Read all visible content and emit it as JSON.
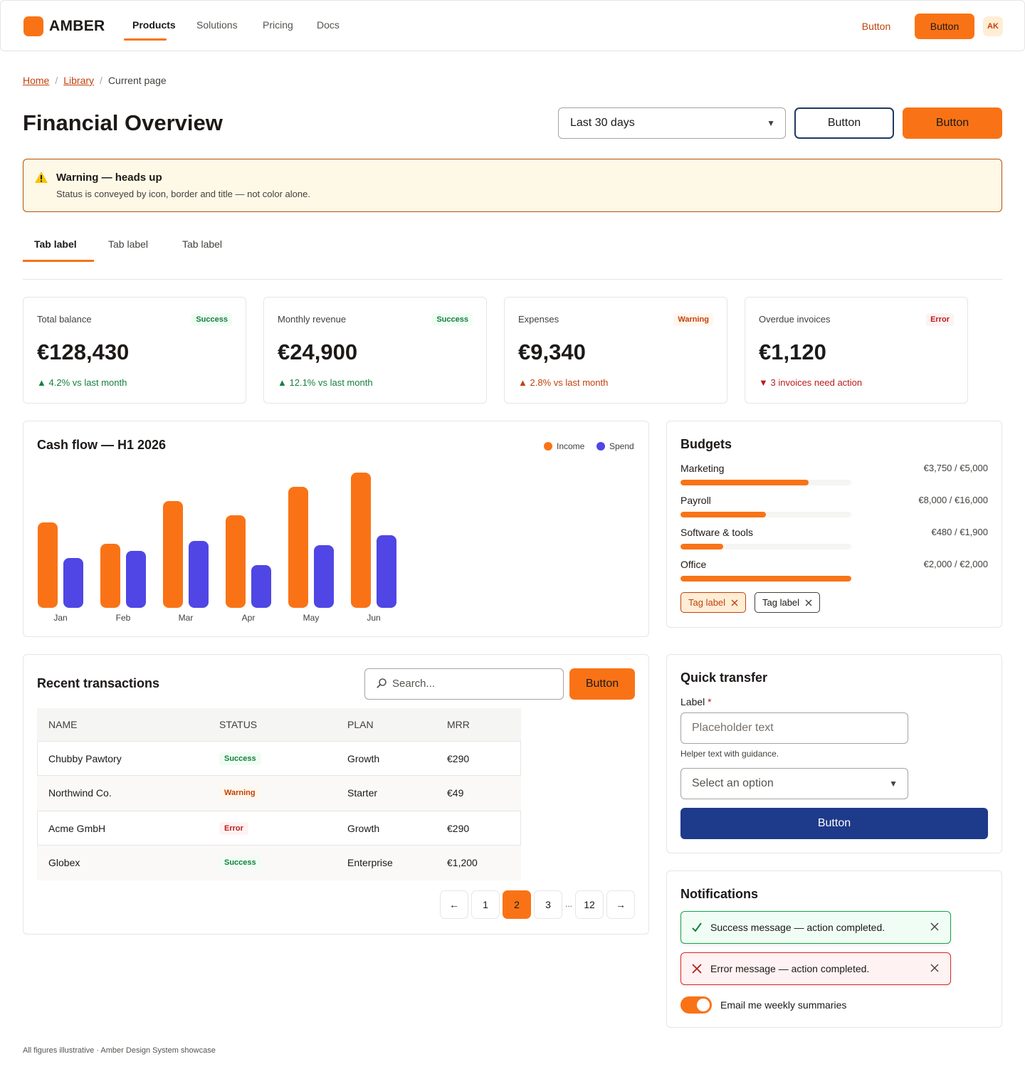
{
  "nav": {
    "brand": "AMBER",
    "items": [
      "Products",
      "Solutions",
      "Pricing",
      "Docs"
    ],
    "text_button": "Button",
    "primary_button": "Button",
    "avatar_initials": "AK"
  },
  "breadcrumb": {
    "home": "Home",
    "library": "Library",
    "current": "Current page",
    "separator": "/"
  },
  "header": {
    "title": "Financial Overview",
    "range_select": "Last 30 days",
    "secondary_button": "Button",
    "primary_button": "Button"
  },
  "alert": {
    "title": "Warning — heads up",
    "body": "Status is conveyed by icon, border and title — not color alone."
  },
  "tabs": [
    "Tab label",
    "Tab label",
    "Tab label"
  ],
  "stats": [
    {
      "label": "Total balance",
      "badge": "Success",
      "value": "€128,430",
      "delta": "4.2% vs last month",
      "trend": "up"
    },
    {
      "label": "Monthly revenue",
      "badge": "Success",
      "value": "€24,900",
      "delta": "12.1% vs last month",
      "trend": "up"
    },
    {
      "label": "Expenses",
      "badge": "Warning",
      "value": "€9,340",
      "delta": "2.8% vs last month",
      "trend": "up-warning"
    },
    {
      "label": "Overdue invoices",
      "badge": "Error",
      "value": "€1,120",
      "delta": "3 invoices need action",
      "trend": "down-error"
    }
  ],
  "cashflow": {
    "title": "Cash flow — H1 2026"
  },
  "chart_data": {
    "type": "bar",
    "title": "Cash flow — H1 2026",
    "categories": [
      "Jan",
      "Feb",
      "Mar",
      "Apr",
      "May",
      "Jun"
    ],
    "series": [
      {
        "name": "Income",
        "color": "#f97316",
        "values": [
          60,
          45,
          75,
          65,
          85,
          95
        ]
      },
      {
        "name": "Spend",
        "color": "#4f46e5",
        "values": [
          35,
          40,
          47,
          30,
          44,
          51
        ]
      }
    ],
    "ylim": [
      0,
      100
    ],
    "grid": false,
    "legend": "top-right"
  },
  "budgets": {
    "title": "Budgets",
    "items": [
      {
        "name": "Marketing",
        "amount": "€3,750 / €5,000",
        "fraction": 0.75
      },
      {
        "name": "Payroll",
        "amount": "€8,000 / €16,000",
        "fraction": 0.5
      },
      {
        "name": "Software & tools",
        "amount": "€480 / €1,900",
        "fraction": 0.25
      },
      {
        "name": "Office",
        "amount": "€2,000 / €2,000",
        "fraction": 1.0
      }
    ],
    "tags": [
      "Tag label",
      "Tag label"
    ]
  },
  "transactions": {
    "title": "Recent transactions",
    "search_placeholder": "Search...",
    "button": "Button",
    "columns": [
      "Name",
      "Status",
      "Plan",
      "MRR"
    ],
    "rows": [
      {
        "name": "Chubby Pawtory",
        "status": "Success",
        "plan": "Growth",
        "mrr": "€290"
      },
      {
        "name": "Northwind Co.",
        "status": "Warning",
        "plan": "Starter",
        "mrr": "€49"
      },
      {
        "name": "Acme GmbH",
        "status": "Error",
        "plan": "Growth",
        "mrr": "€290"
      },
      {
        "name": "Globex",
        "status": "Success",
        "plan": "Enterprise",
        "mrr": "€1,200"
      }
    ],
    "pagination": {
      "prev": "←",
      "pages": [
        "1",
        "2",
        "3",
        "12"
      ],
      "current": "2",
      "ellipsis": "...",
      "next": "→"
    }
  },
  "quick_transfer": {
    "title": "Quick transfer",
    "label": "Label",
    "required_mark": "*",
    "placeholder": "Placeholder text",
    "helper": "Helper text with guidance.",
    "select_placeholder": "Select an option",
    "button": "Button"
  },
  "notifications": {
    "title": "Notifications",
    "success": "Success message — action completed.",
    "error": "Error message — action completed.",
    "toggle_label": "Email me weekly summaries",
    "toggle_on": true
  },
  "footnote": "All figures illustrative · Amber Design System showcase",
  "colors": {
    "accent": "#f97316",
    "accent_dark": "#c2410c",
    "navy": "#1e3a8a",
    "spend": "#4f46e5",
    "success": "#15803d",
    "error": "#b91c1c"
  }
}
